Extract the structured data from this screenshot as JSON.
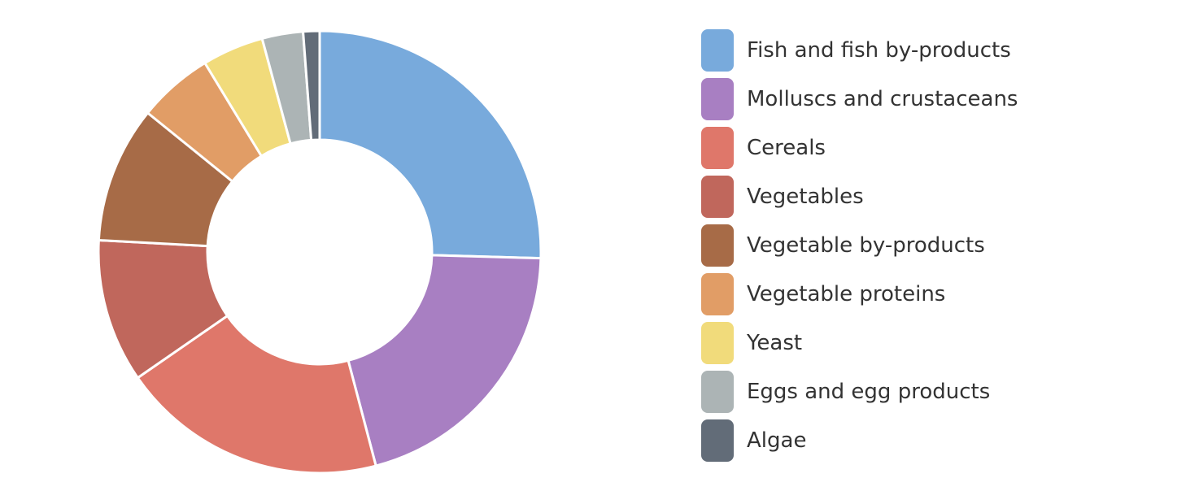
{
  "chart_data": {
    "type": "pie",
    "variant": "donut",
    "legend_position": "right",
    "categories": [
      "Fish and fish by-products",
      "Molluscs and crustaceans",
      "Cereals",
      "Vegetables",
      "Vegetable by-products",
      "Vegetable proteins",
      "Yeast",
      "Eggs and egg products",
      "Algae"
    ],
    "values": [
      25.5,
      20.5,
      19.5,
      10.5,
      10.0,
      5.5,
      4.5,
      3.0,
      1.2
    ],
    "colors": [
      "#78aadc",
      "#a87fc2",
      "#df776a",
      "#c0675c",
      "#a76b47",
      "#e19d66",
      "#f1db7b",
      "#acb4b5",
      "#626c78"
    ]
  }
}
